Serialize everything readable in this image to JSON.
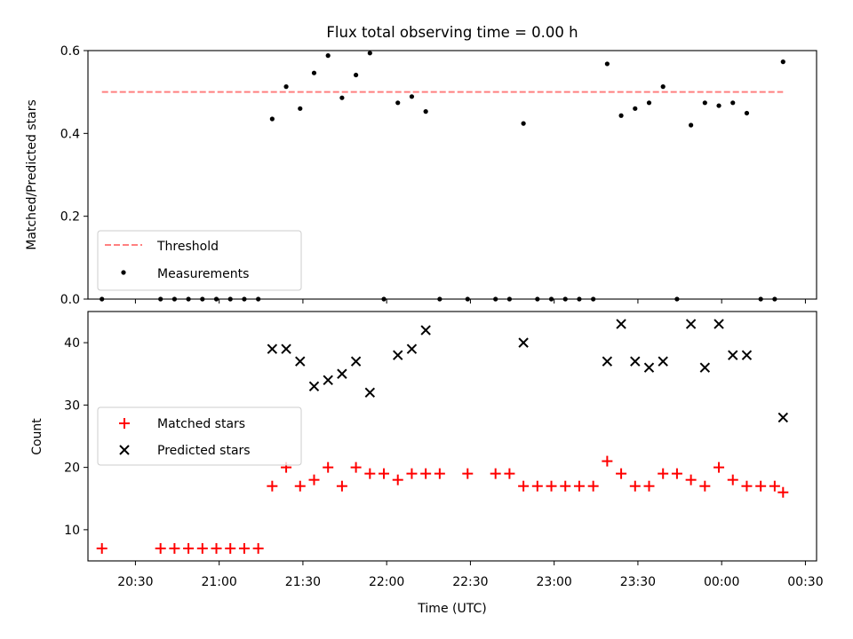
{
  "chart_data": [
    {
      "type": "scatter",
      "title": "Flux total observing time = 0.00 h",
      "xlabel": "",
      "ylabel": "Matched/Predicted stars",
      "ylim": [
        0,
        0.6
      ],
      "yticks": [
        "0.0",
        "0.2",
        "0.4",
        "0.6"
      ],
      "xlim": [
        "20:13",
        "00:34"
      ],
      "threshold": {
        "name": "Threshold",
        "value": 0.5,
        "x_range": [
          "20:18",
          "00:22"
        ],
        "color": "#ff8080"
      },
      "series": [
        {
          "name": "Measurements",
          "color": "#000000",
          "x": [
            "20:18",
            "20:39",
            "20:44",
            "20:49",
            "20:54",
            "20:59",
            "21:04",
            "21:09",
            "21:14",
            "21:19",
            "21:24",
            "21:29",
            "21:34",
            "21:39",
            "21:44",
            "21:49",
            "21:54",
            "21:59",
            "22:04",
            "22:09",
            "22:14",
            "22:19",
            "22:29",
            "22:39",
            "22:44",
            "22:49",
            "22:54",
            "22:59",
            "23:04",
            "23:09",
            "23:14",
            "23:19",
            "23:24",
            "23:29",
            "23:34",
            "23:39",
            "23:44",
            "23:49",
            "23:54",
            "23:59",
            "00:04",
            "00:09",
            "00:14",
            "00:19",
            "00:22"
          ],
          "y": [
            0,
            0,
            0,
            0,
            0,
            0,
            0,
            0,
            0,
            0.435,
            0.513,
            0.46,
            0.546,
            0.588,
            0.486,
            0.541,
            0.594,
            0,
            0.474,
            0.489,
            0.453,
            0,
            0,
            0,
            0,
            0.424,
            0,
            0,
            0,
            0,
            0,
            0.568,
            0.443,
            0.46,
            0.474,
            0.513,
            0,
            0.42,
            0.474,
            0.467,
            0.474,
            0.449,
            0,
            0,
            0.573
          ]
        }
      ]
    },
    {
      "type": "scatter",
      "xlabel": "Time (UTC)",
      "ylabel": "Count",
      "ylim": [
        5,
        45
      ],
      "yticks": [
        "10",
        "20",
        "30",
        "40"
      ],
      "xticks": [
        "20:30",
        "21:00",
        "21:30",
        "22:00",
        "22:30",
        "23:00",
        "23:30",
        "00:00",
        "00:30"
      ],
      "xlim": [
        "20:13",
        "00:34"
      ],
      "series": [
        {
          "name": "Matched stars",
          "marker": "+",
          "color": "#ff0000",
          "x": [
            "20:18",
            "20:39",
            "20:44",
            "20:49",
            "20:54",
            "20:59",
            "21:04",
            "21:09",
            "21:14",
            "21:19",
            "21:24",
            "21:29",
            "21:34",
            "21:39",
            "21:44",
            "21:49",
            "21:54",
            "21:59",
            "22:04",
            "22:09",
            "22:14",
            "22:19",
            "22:29",
            "22:39",
            "22:44",
            "22:49",
            "22:54",
            "22:59",
            "23:04",
            "23:09",
            "23:14",
            "23:19",
            "23:24",
            "23:29",
            "23:34",
            "23:39",
            "23:44",
            "23:49",
            "23:54",
            "23:59",
            "00:04",
            "00:09",
            "00:14",
            "00:19",
            "00:22"
          ],
          "y": [
            7,
            7,
            7,
            7,
            7,
            7,
            7,
            7,
            7,
            17,
            20,
            17,
            18,
            20,
            17,
            20,
            19,
            19,
            18,
            19,
            19,
            19,
            19,
            19,
            19,
            17,
            17,
            17,
            17,
            17,
            17,
            21,
            19,
            17,
            17,
            19,
            19,
            18,
            17,
            20,
            18,
            17,
            17,
            17,
            16
          ]
        },
        {
          "name": "Predicted stars",
          "marker": "x",
          "color": "#000000",
          "x": [
            "21:19",
            "21:24",
            "21:29",
            "21:34",
            "21:39",
            "21:44",
            "21:49",
            "21:54",
            "22:04",
            "22:09",
            "22:14",
            "22:49",
            "23:19",
            "23:24",
            "23:29",
            "23:34",
            "23:39",
            "23:49",
            "23:54",
            "23:59",
            "00:04",
            "00:09",
            "00:22"
          ],
          "y": [
            39,
            39,
            37,
            33,
            34,
            35,
            37,
            32,
            38,
            39,
            42,
            40,
            37,
            43,
            37,
            36,
            37,
            43,
            36,
            43,
            38,
            38,
            28
          ]
        }
      ]
    }
  ]
}
